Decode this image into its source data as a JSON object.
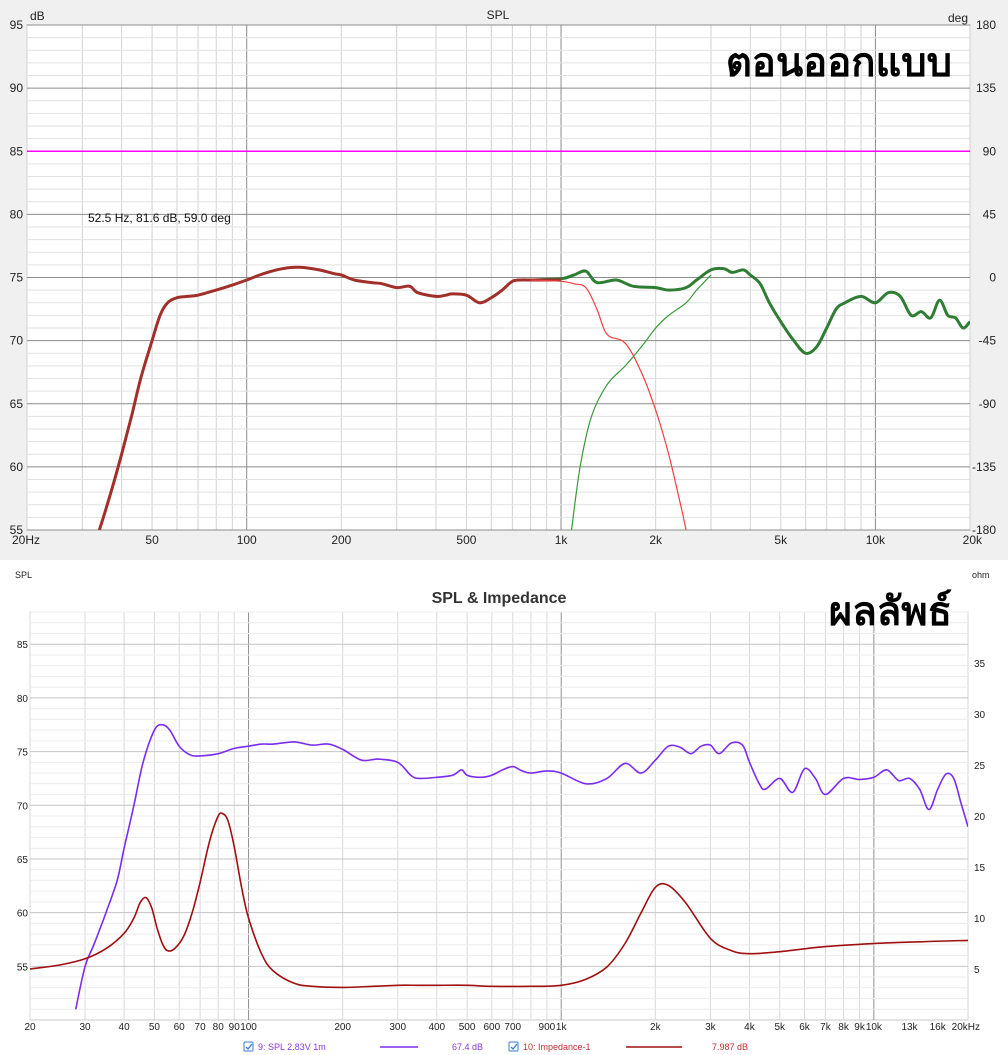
{
  "chart_data": [
    {
      "type": "line",
      "title": "SPL",
      "annotation": "ตอนออกแบบ",
      "cursor_readout": "52.5 Hz, 81.6 dB, 59.0 deg",
      "left_unit": "dB",
      "right_unit": "deg",
      "x_scale": "log",
      "xlim": [
        20,
        20000
      ],
      "ylim": [
        55,
        95
      ],
      "y2lim": [
        -180,
        180
      ],
      "grid": true,
      "x_tick_labels": [
        {
          "v": 20,
          "t": "20Hz"
        },
        {
          "v": 50,
          "t": "50"
        },
        {
          "v": 100,
          "t": "100"
        },
        {
          "v": 200,
          "t": "200"
        },
        {
          "v": 500,
          "t": "500"
        },
        {
          "v": 1000,
          "t": "1k"
        },
        {
          "v": 2000,
          "t": "2k"
        },
        {
          "v": 5000,
          "t": "5k"
        },
        {
          "v": 10000,
          "t": "10k"
        },
        {
          "v": 20000,
          "t": "20k"
        }
      ],
      "y_tick_labels": [
        "55",
        "60",
        "65",
        "70",
        "75",
        "80",
        "85",
        "90",
        "95"
      ],
      "y2_tick_labels": [
        "-180",
        "-135",
        "-90",
        "-45",
        "0",
        "45",
        "90",
        "135",
        "180"
      ],
      "series": [
        {
          "color": "#ff00ff",
          "width": 1.5,
          "x": [
            20,
            20000
          ],
          "y": [
            85,
            85
          ]
        },
        {
          "color": "#2e7d32",
          "width": 3,
          "x": [
            800,
            1000,
            1100,
            1200,
            1300,
            1500,
            1700,
            2000,
            2200,
            2500,
            2700,
            3000,
            3300,
            3500,
            3800,
            4000,
            4300,
            4600,
            5000,
            5500,
            6000,
            6500,
            7000,
            7500,
            8000,
            9000,
            10000,
            11000,
            12000,
            13000,
            14000,
            15000,
            16000,
            17000,
            18000,
            19000,
            20000
          ],
          "y": [
            74.8,
            74.9,
            75.2,
            75.5,
            74.6,
            74.8,
            74.3,
            74.2,
            74.0,
            74.2,
            74.8,
            75.6,
            75.7,
            75.4,
            75.6,
            75.2,
            74.5,
            73.0,
            71.5,
            70.0,
            69.0,
            69.5,
            71.0,
            72.5,
            73.0,
            73.5,
            73.0,
            73.8,
            73.5,
            72.0,
            72.3,
            71.8,
            73.2,
            72.0,
            71.8,
            71.0,
            71.5
          ]
        },
        {
          "color": "#a1302a",
          "width": 3,
          "x": [
            34,
            37,
            40,
            43,
            46,
            50,
            53,
            56,
            60,
            65,
            70,
            80,
            90,
            100,
            110,
            120,
            130,
            140,
            150,
            170,
            190,
            200,
            220,
            250,
            270,
            300,
            330,
            350,
            400,
            430,
            450,
            500,
            550,
            600,
            650,
            700,
            750,
            800,
            900,
            1000
          ],
          "y": [
            55,
            58,
            61,
            64,
            67,
            70,
            72,
            73,
            73.4,
            73.5,
            73.6,
            74.0,
            74.4,
            74.8,
            75.2,
            75.5,
            75.7,
            75.8,
            75.8,
            75.6,
            75.3,
            75.2,
            74.8,
            74.6,
            74.5,
            74.2,
            74.3,
            73.8,
            73.5,
            73.6,
            73.7,
            73.6,
            73.0,
            73.4,
            74.0,
            74.7,
            74.8,
            74.8,
            74.8,
            74.8
          ]
        },
        {
          "color": "#f04040",
          "width": 1.2,
          "x": [
            800,
            1000,
            1100,
            1200,
            1300,
            1400,
            1600,
            1800,
            2000,
            2200,
            2400,
            2500
          ],
          "y": [
            74.8,
            74.7,
            74.5,
            74.2,
            72.5,
            70.5,
            69.8,
            67.5,
            64.5,
            61.0,
            57.0,
            55.0
          ]
        },
        {
          "color": "#3a9a3a",
          "width": 1.2,
          "x": [
            1080,
            1150,
            1250,
            1400,
            1600,
            1800,
            2000,
            2200,
            2500,
            2700,
            3000
          ],
          "y": [
            55,
            60,
            64,
            66.5,
            68,
            69.5,
            71,
            72,
            73,
            74,
            75.2
          ]
        }
      ]
    },
    {
      "type": "line",
      "title": "SPL & Impedance",
      "annotation": "ผลลัพธ์",
      "left_unit": "SPL",
      "right_unit": "ohm",
      "x_scale": "log",
      "xlim": [
        20,
        20000
      ],
      "ylim": [
        50,
        88
      ],
      "y2lim": [
        0,
        40
      ],
      "grid": true,
      "x_tick_labels": [
        {
          "v": 20,
          "t": "20"
        },
        {
          "v": 30,
          "t": "30"
        },
        {
          "v": 40,
          "t": "40"
        },
        {
          "v": 50,
          "t": "50"
        },
        {
          "v": 60,
          "t": "60"
        },
        {
          "v": 70,
          "t": "70"
        },
        {
          "v": 80,
          "t": "80"
        },
        {
          "v": 90,
          "t": "90"
        },
        {
          "v": 100,
          "t": "100"
        },
        {
          "v": 200,
          "t": "200"
        },
        {
          "v": 300,
          "t": "300"
        },
        {
          "v": 400,
          "t": "400"
        },
        {
          "v": 500,
          "t": "500"
        },
        {
          "v": 600,
          "t": "600"
        },
        {
          "v": 700,
          "t": "700"
        },
        {
          "v": 900,
          "t": "900"
        },
        {
          "v": 1000,
          "t": "1k"
        },
        {
          "v": 2000,
          "t": "2k"
        },
        {
          "v": 3000,
          "t": "3k"
        },
        {
          "v": 4000,
          "t": "4k"
        },
        {
          "v": 5000,
          "t": "5k"
        },
        {
          "v": 6000,
          "t": "6k"
        },
        {
          "v": 7000,
          "t": "7k"
        },
        {
          "v": 8000,
          "t": "8k"
        },
        {
          "v": 9000,
          "t": "9k"
        },
        {
          "v": 10000,
          "t": "10k"
        },
        {
          "v": 13000,
          "t": "13k"
        },
        {
          "v": 16000,
          "t": "16k"
        },
        {
          "v": 20000,
          "t": "20kHz"
        }
      ],
      "y_tick_labels": [
        {
          "v": 55,
          "t": "55"
        },
        {
          "v": 60,
          "t": "60"
        },
        {
          "v": 65,
          "t": "65"
        },
        {
          "v": 70,
          "t": "70"
        },
        {
          "v": 75,
          "t": "75"
        },
        {
          "v": 80,
          "t": "80"
        },
        {
          "v": 85,
          "t": "85"
        }
      ],
      "y2_tick_labels": [
        {
          "v": 5,
          "t": "5"
        },
        {
          "v": 10,
          "t": "10"
        },
        {
          "v": 15,
          "t": "15"
        },
        {
          "v": 20,
          "t": "20"
        },
        {
          "v": 25,
          "t": "25"
        },
        {
          "v": 30,
          "t": "30"
        },
        {
          "v": 35,
          "t": "35"
        }
      ],
      "legend": [
        {
          "label": "9: SPL 2.83V 1m",
          "value": "67.4 dB",
          "color": "#7b2cf0",
          "text_color": "#8a3ad8"
        },
        {
          "label": "10: Impedance-1",
          "value": "7.987 dB",
          "color": "#a01010",
          "text_color": "#c03030"
        }
      ],
      "series": [
        {
          "name": "9: SPL 2.83V 1m",
          "color": "#7b2cf0",
          "width": 1.6,
          "axis": "left",
          "x": [
            28,
            30,
            32,
            35,
            38,
            40,
            43,
            46,
            50,
            53,
            56,
            60,
            65,
            70,
            80,
            90,
            100,
            110,
            120,
            140,
            160,
            180,
            200,
            230,
            260,
            300,
            330,
            350,
            400,
            450,
            480,
            500,
            550,
            600,
            650,
            700,
            750,
            800,
            900,
            1000,
            1200,
            1400,
            1600,
            1800,
            2000,
            2200,
            2400,
            2600,
            2800,
            3000,
            3200,
            3500,
            3800,
            4000,
            4300,
            4500,
            5000,
            5500,
            6000,
            6500,
            7000,
            8000,
            9000,
            10000,
            11000,
            12000,
            13000,
            14000,
            15000,
            16000,
            17000,
            18000,
            19000,
            20000
          ],
          "y": [
            51,
            55,
            57,
            60,
            63,
            66,
            70,
            74,
            77,
            77.5,
            77,
            75.5,
            74.7,
            74.6,
            74.8,
            75.3,
            75.5,
            75.7,
            75.7,
            75.9,
            75.6,
            75.7,
            75.2,
            74.2,
            74.3,
            74.0,
            72.8,
            72.5,
            72.6,
            72.8,
            73.3,
            72.8,
            72.6,
            72.8,
            73.3,
            73.6,
            73.2,
            73.0,
            73.2,
            73.0,
            72.0,
            72.5,
            73.9,
            73.0,
            74.2,
            75.5,
            75.4,
            74.8,
            75.5,
            75.6,
            74.8,
            75.8,
            75.6,
            74.0,
            72.0,
            71.5,
            72.5,
            71.2,
            73.4,
            72.5,
            71.0,
            72.5,
            72.4,
            72.6,
            73.3,
            72.3,
            72.5,
            71.5,
            69.6,
            71.5,
            72.9,
            72.5,
            70.2,
            68.0
          ]
        },
        {
          "name": "10: Impedance-1",
          "color": "#a01010",
          "width": 1.6,
          "axis": "right",
          "x": [
            20,
            25,
            30,
            35,
            40,
            43,
            45,
            47,
            49,
            51,
            53,
            55,
            58,
            62,
            66,
            70,
            75,
            80,
            83,
            86,
            90,
            95,
            100,
            110,
            120,
            140,
            160,
            200,
            250,
            300,
            350,
            400,
            500,
            600,
            800,
            1000,
            1200,
            1400,
            1600,
            1800,
            2000,
            2200,
            2500,
            3000,
            3500,
            4000,
            5000,
            7000,
            10000,
            15000,
            20000
          ],
          "y": [
            5.0,
            5.4,
            6.0,
            7.0,
            8.5,
            10.0,
            11.5,
            12.0,
            11.0,
            9.0,
            7.5,
            6.8,
            7.0,
            8.2,
            10.5,
            13.5,
            17.5,
            20.0,
            20.2,
            19.5,
            17.0,
            13.0,
            10.0,
            6.5,
            4.8,
            3.6,
            3.3,
            3.2,
            3.3,
            3.4,
            3.4,
            3.4,
            3.4,
            3.3,
            3.3,
            3.4,
            4.0,
            5.2,
            7.5,
            10.5,
            13.0,
            13.2,
            11.5,
            8.0,
            6.8,
            6.5,
            6.7,
            7.2,
            7.5,
            7.7,
            7.8
          ]
        }
      ]
    }
  ]
}
